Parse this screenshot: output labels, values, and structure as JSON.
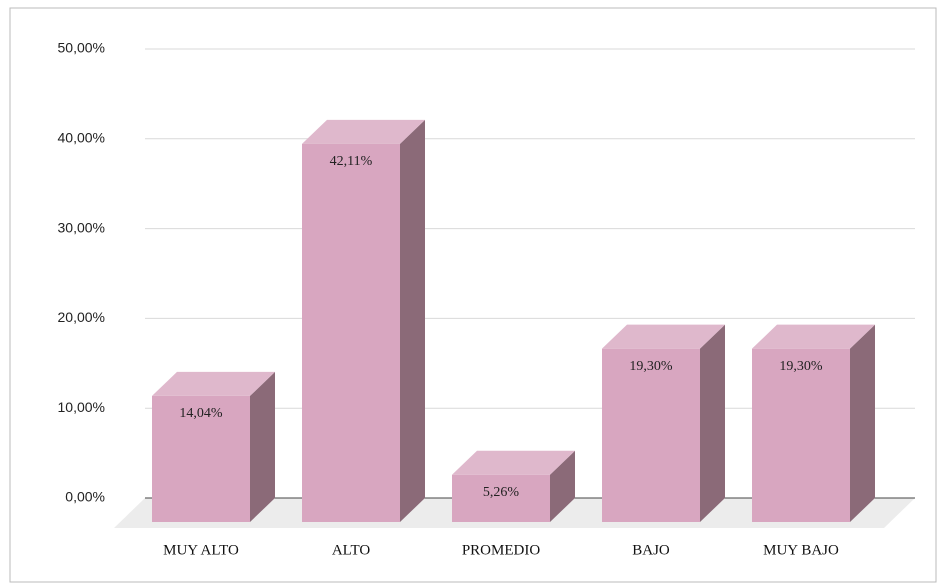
{
  "chart_data": {
    "type": "bar3d",
    "categories": [
      "MUY ALTO",
      "ALTO",
      "PROMEDIO",
      "BAJO",
      "MUY BAJO"
    ],
    "values": [
      14.04,
      42.11,
      5.26,
      19.3,
      19.3
    ],
    "value_labels": [
      "14,04%",
      "42,11%",
      "5,26%",
      "19,30%",
      "19,30%"
    ],
    "color": "#d8a6c0",
    "ylim": [
      0,
      50
    ],
    "yticks": [
      {
        "value": 0,
        "label": "0,00%"
      },
      {
        "value": 10,
        "label": "10,00%"
      },
      {
        "value": 20,
        "label": "20,00%"
      },
      {
        "value": 30,
        "label": "30,00%"
      },
      {
        "value": 40,
        "label": "40,00%"
      },
      {
        "value": 50,
        "label": "50,00%"
      }
    ],
    "grid": true
  }
}
